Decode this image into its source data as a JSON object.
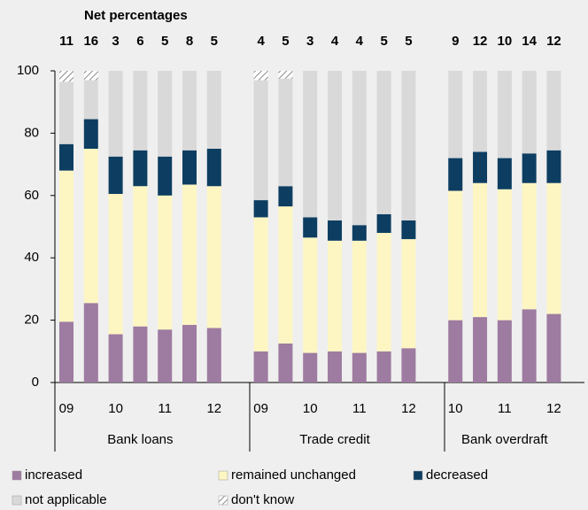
{
  "chart_data": {
    "type": "stacked_bar",
    "net_percentages": {
      "label": "Net percentages",
      "values": [
        [
          11,
          16,
          3,
          6,
          5,
          8,
          5
        ],
        [
          4,
          5,
          3,
          4,
          4,
          5,
          5
        ],
        [
          9,
          12,
          10,
          14,
          12
        ]
      ]
    },
    "groups": [
      "Bank loans",
      "Trade credit",
      "Bank overdraft"
    ],
    "categories": [
      [
        "09",
        null,
        "10",
        null,
        "11",
        null,
        "12"
      ],
      [
        "09",
        null,
        "10",
        null,
        "11",
        null,
        "12"
      ],
      [
        "10",
        null,
        "11",
        null,
        "12"
      ]
    ],
    "series": [
      {
        "name": "increased",
        "color": "#9e7ba0",
        "values": [
          [
            19.5,
            25.5,
            15.5,
            18,
            17,
            18.5,
            17.5
          ],
          [
            10,
            12.5,
            9.5,
            10,
            9.5,
            10,
            11
          ],
          [
            20,
            21,
            20,
            23.5,
            22
          ]
        ]
      },
      {
        "name": "remained unchanged",
        "color": "#fdf6c3",
        "values": [
          [
            48.5,
            49.5,
            45,
            45,
            43,
            45,
            45.5
          ],
          [
            43,
            44,
            37,
            35.5,
            36,
            38,
            35
          ],
          [
            41.5,
            43,
            42,
            40.5,
            42
          ]
        ]
      },
      {
        "name": "decreased",
        "color": "#0d3e62",
        "values": [
          [
            8.5,
            9.5,
            12,
            11.5,
            12.5,
            11,
            12
          ],
          [
            5.5,
            6.5,
            6.5,
            6.5,
            5,
            6,
            6
          ],
          [
            10.5,
            10,
            10,
            9.5,
            10.5
          ]
        ]
      },
      {
        "name": "not applicable",
        "color": "#d9d9d9",
        "values": [
          [
            20,
            12.5,
            27.5,
            25.5,
            27.5,
            25.5,
            25
          ],
          [
            38.5,
            34.5,
            47,
            48,
            49.5,
            46,
            48
          ],
          [
            28,
            26,
            28,
            26.5,
            25.5
          ]
        ]
      },
      {
        "name": "don't know",
        "color": "#8a8a8a",
        "hatch": true,
        "values": [
          [
            3.5,
            3,
            null,
            null,
            null,
            null,
            null
          ],
          [
            3,
            2.5,
            null,
            null,
            null,
            null,
            null
          ],
          [
            null,
            null,
            null,
            null,
            null
          ]
        ]
      }
    ],
    "ylim": [
      0,
      100
    ],
    "yticks": [
      0,
      20,
      40,
      60,
      80,
      100
    ]
  }
}
